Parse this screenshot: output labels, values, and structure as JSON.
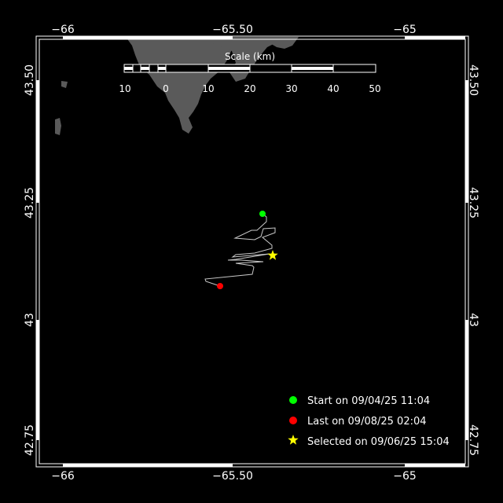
{
  "map": {
    "lon_ticks": [
      "−66",
      "−65.50",
      "−65"
    ],
    "lat_ticks": [
      "43.50",
      "43.25",
      "43",
      "42.75"
    ],
    "scale": {
      "title": "Scale (km)",
      "labels": [
        "10",
        "0",
        "10",
        "20",
        "30",
        "40",
        "50"
      ]
    },
    "legend": [
      {
        "marker": "circle",
        "color": "#00ff00",
        "label": "Start on 09/04/25 11:04"
      },
      {
        "marker": "circle",
        "color": "#ff0000",
        "label": "Last on 09/08/25 02:04"
      },
      {
        "marker": "star",
        "color": "#ffff00",
        "label": "Selected on 09/06/25 15:04"
      }
    ],
    "colors": {
      "land": "#5a5a5a",
      "sea": "#000000",
      "track": "#c8c8c8",
      "frame": "#ffffff"
    }
  }
}
